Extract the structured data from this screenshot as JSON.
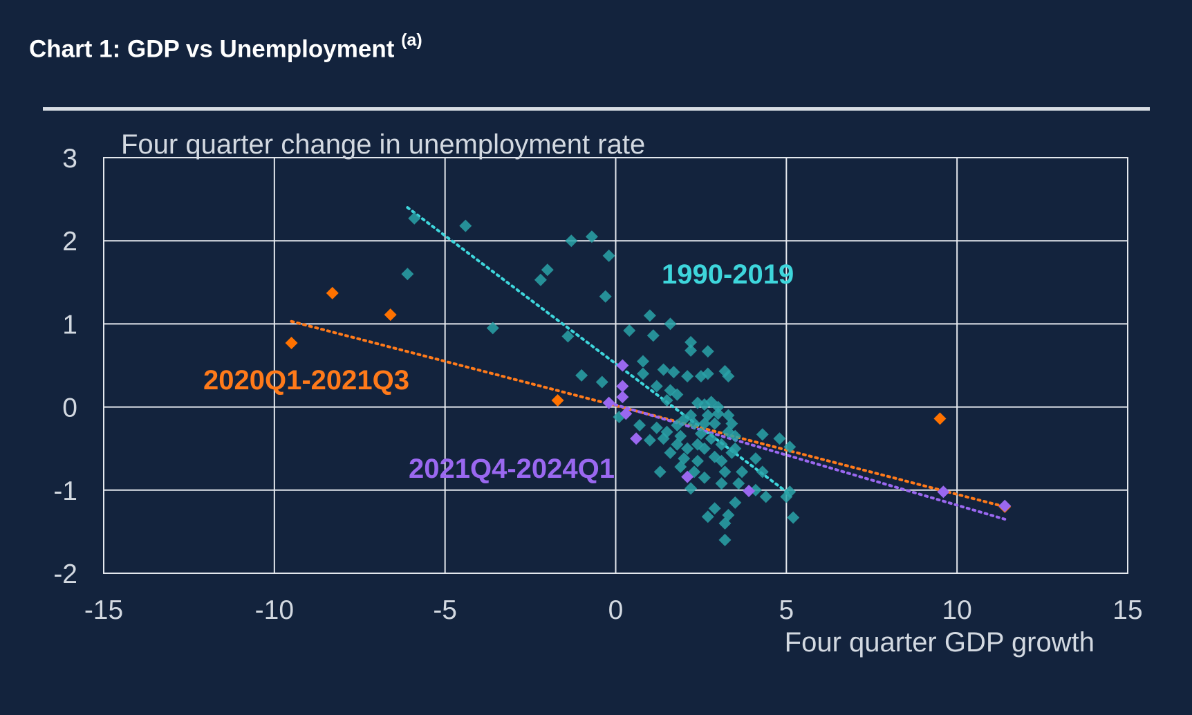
{
  "title": {
    "main": "Chart 1: GDP vs Unemployment ",
    "note": "(a)"
  },
  "chart_data": {
    "type": "scatter",
    "xlabel": "Four quarter GDP growth",
    "ylabel": "Four quarter change in unemployment rate",
    "xlim": [
      -15,
      15
    ],
    "ylim": [
      -2,
      3
    ],
    "xticks": [
      -15,
      -10,
      -5,
      0,
      5,
      10,
      15
    ],
    "yticks": [
      3,
      2,
      1,
      0,
      -1,
      -2
    ],
    "grid": true,
    "series": [
      {
        "name": "1990-2019",
        "color": "#2aa3a8",
        "label_color": "#3ed6dc",
        "trend": {
          "x": [
            -6.1,
            5.1
          ],
          "y": [
            2.4,
            -1.05
          ],
          "color": "#3ed6dc"
        },
        "points": [
          [
            -5.9,
            2.27
          ],
          [
            -4.4,
            2.18
          ],
          [
            -6.1,
            1.6
          ],
          [
            -1.3,
            2.0
          ],
          [
            -0.7,
            2.05
          ],
          [
            -0.2,
            1.82
          ],
          [
            -2.0,
            1.65
          ],
          [
            -2.2,
            1.53
          ],
          [
            -0.3,
            1.33
          ],
          [
            -3.6,
            0.95
          ],
          [
            -1.4,
            0.85
          ],
          [
            0.4,
            0.92
          ],
          [
            1.0,
            1.1
          ],
          [
            1.6,
            1.0
          ],
          [
            1.1,
            0.86
          ],
          [
            -1.0,
            0.38
          ],
          [
            -0.4,
            0.3
          ],
          [
            0.8,
            0.55
          ],
          [
            0.8,
            0.4
          ],
          [
            1.4,
            0.45
          ],
          [
            1.7,
            0.42
          ],
          [
            2.2,
            0.78
          ],
          [
            2.2,
            0.68
          ],
          [
            2.7,
            0.67
          ],
          [
            2.1,
            0.37
          ],
          [
            2.5,
            0.37
          ],
          [
            2.7,
            0.4
          ],
          [
            3.2,
            0.43
          ],
          [
            3.3,
            0.37
          ],
          [
            1.2,
            0.25
          ],
          [
            1.6,
            0.2
          ],
          [
            1.8,
            0.15
          ],
          [
            1.5,
            0.08
          ],
          [
            2.4,
            0.05
          ],
          [
            2.6,
            0.03
          ],
          [
            2.8,
            0.06
          ],
          [
            3.0,
            0.0
          ],
          [
            3.3,
            -0.1
          ],
          [
            0.1,
            -0.12
          ],
          [
            0.7,
            -0.22
          ],
          [
            1.2,
            -0.25
          ],
          [
            1.5,
            -0.3
          ],
          [
            1.8,
            -0.22
          ],
          [
            2.0,
            -0.15
          ],
          [
            2.3,
            -0.2
          ],
          [
            2.6,
            -0.2
          ],
          [
            2.9,
            -0.2
          ],
          [
            3.4,
            -0.2
          ],
          [
            1.0,
            -0.4
          ],
          [
            1.4,
            -0.38
          ],
          [
            1.8,
            -0.45
          ],
          [
            2.1,
            -0.5
          ],
          [
            2.4,
            -0.45
          ],
          [
            2.6,
            -0.5
          ],
          [
            2.8,
            -0.38
          ],
          [
            3.1,
            -0.45
          ],
          [
            3.5,
            -0.5
          ],
          [
            1.6,
            -0.55
          ],
          [
            2.0,
            -0.62
          ],
          [
            2.4,
            -0.65
          ],
          [
            2.9,
            -0.6
          ],
          [
            3.1,
            -0.65
          ],
          [
            3.4,
            -0.55
          ],
          [
            1.3,
            -0.78
          ],
          [
            1.9,
            -0.72
          ],
          [
            2.3,
            -0.78
          ],
          [
            2.6,
            -0.85
          ],
          [
            3.2,
            -0.78
          ],
          [
            3.7,
            -0.78
          ],
          [
            4.1,
            -0.62
          ],
          [
            4.3,
            -0.78
          ],
          [
            3.6,
            -0.92
          ],
          [
            4.1,
            -1.0
          ],
          [
            4.4,
            -1.08
          ],
          [
            5.1,
            -1.02
          ],
          [
            5.0,
            -1.08
          ],
          [
            2.2,
            -0.98
          ],
          [
            3.1,
            -0.92
          ],
          [
            3.5,
            -1.15
          ],
          [
            2.9,
            -1.22
          ],
          [
            3.3,
            -1.3
          ],
          [
            2.7,
            -1.32
          ],
          [
            3.2,
            -1.4
          ],
          [
            5.2,
            -1.33
          ],
          [
            3.2,
            -1.6
          ],
          [
            4.3,
            -0.33
          ],
          [
            4.8,
            -0.38
          ],
          [
            5.1,
            -0.48
          ],
          [
            2.5,
            -0.32
          ],
          [
            2.2,
            -0.1
          ],
          [
            3.3,
            -0.3
          ],
          [
            1.9,
            -0.35
          ],
          [
            2.7,
            -0.1
          ],
          [
            3.0,
            -0.08
          ],
          [
            3.5,
            -0.35
          ]
        ]
      },
      {
        "name": "2020Q1-2021Q3",
        "color": "#ff7200",
        "label_color": "#ff7a1a",
        "trend": {
          "x": [
            -9.5,
            11.4
          ],
          "y": [
            1.03,
            -1.2
          ],
          "color": "#ff7a1a"
        },
        "points": [
          [
            -8.3,
            1.37
          ],
          [
            -6.6,
            1.11
          ],
          [
            -9.5,
            0.77
          ],
          [
            -1.7,
            0.08
          ],
          [
            9.5,
            -0.14
          ],
          [
            11.4,
            -1.2
          ]
        ]
      },
      {
        "name": "2021Q4-2024Q1",
        "color": "#9a68f0",
        "label_color": "#9a68f0",
        "trend": {
          "x": [
            -0.2,
            11.4
          ],
          "y": [
            0.05,
            -1.35
          ],
          "color": "#9a68f0"
        },
        "points": [
          [
            0.2,
            0.5
          ],
          [
            0.2,
            0.25
          ],
          [
            0.2,
            0.12
          ],
          [
            -0.2,
            0.05
          ],
          [
            0.3,
            -0.08
          ],
          [
            0.6,
            -0.38
          ],
          [
            2.1,
            -0.84
          ],
          [
            3.9,
            -1.01
          ],
          [
            9.6,
            -1.02
          ],
          [
            11.4,
            -1.19
          ]
        ]
      }
    ],
    "annotations": [
      {
        "text": "1990-2019",
        "series": 0
      },
      {
        "text": "2020Q1-2021Q3",
        "series": 1
      },
      {
        "text": "2021Q4-2024Q1",
        "series": 2
      }
    ]
  }
}
